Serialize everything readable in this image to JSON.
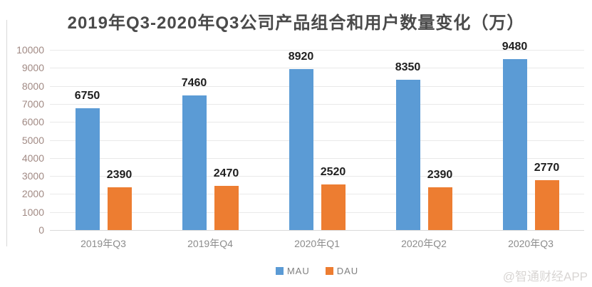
{
  "title": "2019年Q3-2020年Q3公司产品组合和用户数量变化（万）",
  "watermark": "@智通财经APP",
  "colors": {
    "mau": "#5B9BD5",
    "dau": "#ED7D31",
    "gridline": "#e9e9e9",
    "axis_line": "#d9d9d9",
    "y_tick_text": "#a18a84",
    "x_tick_text": "#8c8c8c",
    "value_label_text": "#1f1f1f",
    "title_text": "#4a4a4a"
  },
  "chart_data": {
    "type": "bar",
    "title": "2019年Q3-2020年Q3公司产品组合和用户数量变化（万）",
    "categories": [
      "2019年Q3",
      "2019年Q4",
      "2020年Q1",
      "2020年Q2",
      "2020年Q3"
    ],
    "series": [
      {
        "name": "MAU",
        "color": "#5B9BD5",
        "values": [
          6750,
          7460,
          8920,
          8350,
          9480
        ]
      },
      {
        "name": "DAU",
        "color": "#ED7D31",
        "values": [
          2390,
          2470,
          2520,
          2390,
          2770
        ]
      }
    ],
    "xlabel": "",
    "ylabel": "",
    "ylim": [
      0,
      10000
    ],
    "ytick_step": 1000,
    "grid": true,
    "legend_position": "bottom",
    "data_labels": true
  }
}
